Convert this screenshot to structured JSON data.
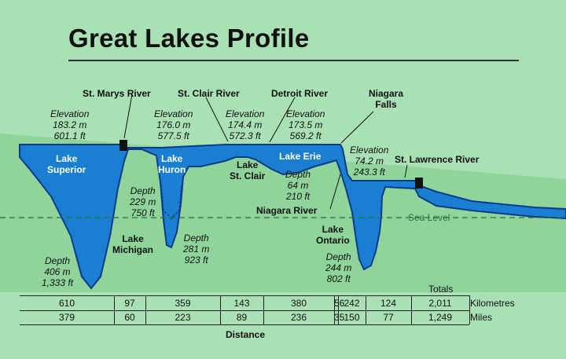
{
  "title": "Great Lakes Profile",
  "colors": {
    "background": "#a9e0b4",
    "ground": "#8fd49b",
    "water": "#1a7fd1",
    "water_edge": "#0a3a8a",
    "lock": "#111111",
    "sea_level_line": "#2f6e3e"
  },
  "rivers": {
    "st_marys": "St. Marys River",
    "st_clair": "St. Clair River",
    "detroit": "Detroit River",
    "niagara_falls": [
      "Niagara",
      "Falls"
    ],
    "st_lawrence": "St. Lawrence River",
    "niagara": "Niagara River"
  },
  "elevations": {
    "superior": [
      "Elevation",
      "183.2 m",
      "601.1 ft"
    ],
    "huron": [
      "Elevation",
      "176.0 m",
      "577.5 ft"
    ],
    "st_clair": [
      "Elevation",
      "174.4 m",
      "572.3 ft"
    ],
    "erie": [
      "Elevation",
      "173.5 m",
      "569.2 ft"
    ],
    "ontario": [
      "Elevation",
      "74.2 m",
      "243.3 ft"
    ]
  },
  "lakes": {
    "superior": [
      "Lake",
      "Superior"
    ],
    "huron": [
      "Lake",
      "Huron"
    ],
    "erie": "Lake Erie",
    "st_clair": [
      "Lake",
      "St. Clair"
    ],
    "michigan": [
      "Lake",
      "Michigan"
    ],
    "ontario": [
      "Lake",
      "Ontario"
    ]
  },
  "depths": {
    "superior": [
      "Depth",
      "406 m",
      "1,333 ft"
    ],
    "michigan": [
      "Depth",
      "281 m",
      "923 ft"
    ],
    "huron": [
      "Depth",
      "229 m",
      "750 ft"
    ],
    "erie": [
      "Depth",
      "64 m",
      "210 ft"
    ],
    "ontario": [
      "Depth",
      "244 m",
      "802 ft"
    ]
  },
  "sea_level": "Sea Level",
  "totals_label": "Totals",
  "distance_label": "Distance",
  "units": {
    "km": "Kilometres",
    "mi": "Miles"
  },
  "distances": {
    "km": [
      "610",
      "97",
      "359",
      "143",
      "380",
      "56",
      "242",
      "124",
      "2,011"
    ],
    "mi": [
      "379",
      "60",
      "223",
      "89",
      "236",
      "35",
      "150",
      "77",
      "1,249"
    ]
  }
}
